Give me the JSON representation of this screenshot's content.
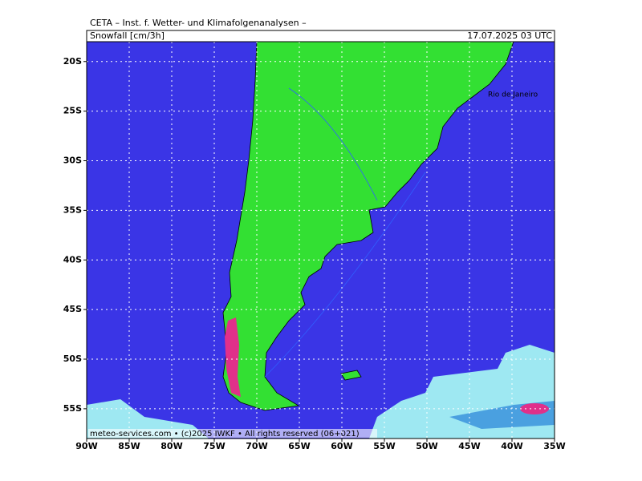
{
  "header": {
    "title": "CETA – Inst. f. Wetter- und Klimafolgenanalysen –",
    "parameter": "Snowfall [cm/3h]",
    "valid_time": "17.07.2025 03 UTC"
  },
  "map": {
    "city_label": "Rio de Janeiro",
    "copyright": "meteo-services.com • (c)2025 IWKF • All rights reserved (06+021)",
    "lon_range": [
      -90,
      -35
    ],
    "lat_range": [
      -18,
      -58
    ],
    "lon_ticks": [
      {
        "value": -90,
        "label": "90W"
      },
      {
        "value": -85,
        "label": "85W"
      },
      {
        "value": -80,
        "label": "80W"
      },
      {
        "value": -75,
        "label": "75W"
      },
      {
        "value": -70,
        "label": "70W"
      },
      {
        "value": -65,
        "label": "65W"
      },
      {
        "value": -60,
        "label": "60W"
      },
      {
        "value": -55,
        "label": "55W"
      },
      {
        "value": -50,
        "label": "50W"
      },
      {
        "value": -45,
        "label": "45W"
      },
      {
        "value": -40,
        "label": "40W"
      },
      {
        "value": -35,
        "label": "35W"
      }
    ],
    "lat_ticks": [
      {
        "value": -20,
        "label": "20S"
      },
      {
        "value": -25,
        "label": "25S"
      },
      {
        "value": -30,
        "label": "30S"
      },
      {
        "value": -35,
        "label": "35S"
      },
      {
        "value": -40,
        "label": "40S"
      },
      {
        "value": -45,
        "label": "45S"
      },
      {
        "value": -50,
        "label": "50S"
      },
      {
        "value": -55,
        "label": "55S"
      }
    ]
  }
}
